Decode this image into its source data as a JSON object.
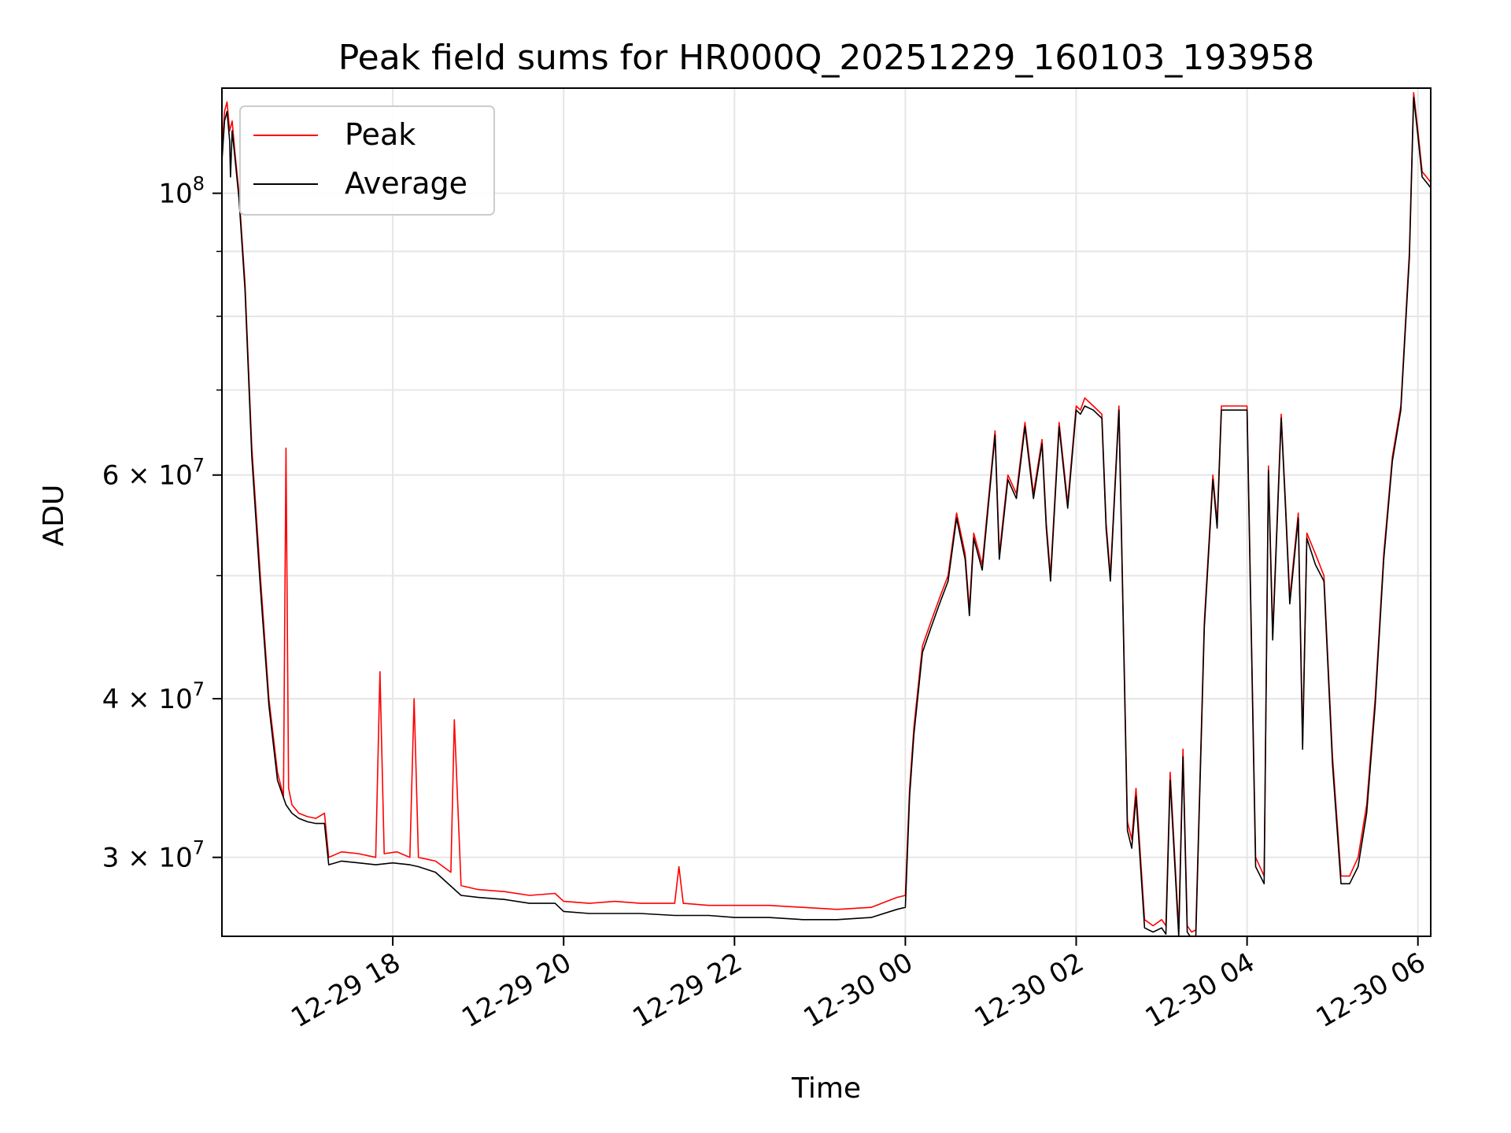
{
  "chart_data": {
    "type": "line",
    "title": "Peak field sums for HR000Q_20251229_160103_193958",
    "xlabel": "Time",
    "ylabel": "ADU",
    "yscale": "log",
    "xlim": [
      16.0,
      30.15
    ],
    "ylim": [
      26000000,
      121000000
    ],
    "grid": true,
    "legend_position": "upper-left",
    "x_ticks": [
      {
        "value": 18,
        "label": "12-29 18"
      },
      {
        "value": 20,
        "label": "12-29 20"
      },
      {
        "value": 22,
        "label": "12-29 22"
      },
      {
        "value": 24,
        "label": "12-30 00"
      },
      {
        "value": 26,
        "label": "12-30 02"
      },
      {
        "value": 28,
        "label": "12-30 04"
      },
      {
        "value": 30,
        "label": "12-30 06"
      }
    ],
    "y_ticks_major": [
      {
        "value": 100000000,
        "base": "10",
        "exp": "8",
        "mant": ""
      },
      {
        "value": 60000000,
        "base": "10",
        "exp": "7",
        "mant": "6 × "
      },
      {
        "value": 40000000,
        "base": "10",
        "exp": "7",
        "mant": "4 × "
      },
      {
        "value": 30000000,
        "base": "10",
        "exp": "7",
        "mant": "3 × "
      }
    ],
    "y_ticks_minor": [
      90000000,
      80000000,
      70000000,
      50000000
    ],
    "x_units": "hours since 2025-12-29 00:00",
    "series": [
      {
        "name": "Peak",
        "color": "#ff0000",
        "x": [
          16.0,
          16.03,
          16.06,
          16.09,
          16.12,
          16.15,
          16.2,
          16.27,
          16.35,
          16.45,
          16.55,
          16.65,
          16.72,
          16.75,
          16.78,
          16.82,
          16.9,
          17.0,
          17.1,
          17.2,
          17.25,
          17.4,
          17.6,
          17.8,
          17.85,
          17.9,
          18.05,
          18.2,
          18.25,
          18.3,
          18.5,
          18.68,
          18.72,
          18.8,
          19.0,
          19.3,
          19.6,
          19.9,
          20.0,
          20.3,
          20.6,
          20.9,
          21.3,
          21.35,
          21.4,
          21.7,
          22.0,
          22.4,
          22.8,
          23.2,
          23.6,
          23.9,
          24.0,
          24.05,
          24.1,
          24.2,
          24.3,
          24.4,
          24.5,
          24.6,
          24.7,
          24.75,
          24.8,
          24.9,
          25.0,
          25.05,
          25.1,
          25.2,
          25.3,
          25.4,
          25.5,
          25.6,
          25.65,
          25.7,
          25.8,
          25.9,
          26.0,
          26.05,
          26.1,
          26.2,
          26.3,
          26.35,
          26.4,
          26.5,
          26.6,
          26.65,
          26.7,
          26.8,
          26.9,
          27.0,
          27.05,
          27.1,
          27.2,
          27.25,
          27.3,
          27.35,
          27.4,
          27.5,
          27.6,
          27.65,
          27.7,
          27.8,
          28.0,
          28.1,
          28.2,
          28.25,
          28.3,
          28.4,
          28.45,
          28.5,
          28.6,
          28.65,
          28.7,
          28.8,
          28.9,
          29.0,
          29.1,
          29.2,
          29.3,
          29.4,
          29.5,
          29.6,
          29.7,
          29.8,
          29.9,
          29.95,
          30.0,
          30.05,
          30.1,
          30.15
        ],
        "y": [
          108000000,
          116000000,
          118000000,
          112000000,
          114000000,
          108000000,
          100000000,
          85000000,
          63000000,
          50000000,
          40000000,
          35000000,
          33500000,
          63000000,
          34000000,
          33000000,
          32500000,
          32300000,
          32200000,
          32500000,
          30000000,
          30300000,
          30200000,
          30000000,
          42000000,
          30200000,
          30300000,
          30000000,
          40000000,
          30000000,
          29800000,
          29200000,
          38500000,
          28500000,
          28300000,
          28200000,
          28000000,
          28100000,
          27700000,
          27600000,
          27700000,
          27600000,
          27600000,
          29500000,
          27600000,
          27500000,
          27500000,
          27500000,
          27400000,
          27300000,
          27400000,
          27900000,
          28000000,
          34000000,
          38000000,
          44000000,
          46000000,
          48000000,
          50000000,
          56000000,
          52000000,
          47000000,
          54000000,
          51000000,
          60000000,
          65000000,
          52000000,
          60000000,
          58000000,
          66000000,
          58000000,
          64000000,
          55000000,
          50000000,
          66000000,
          57000000,
          68000000,
          67500000,
          69000000,
          68000000,
          67000000,
          55000000,
          50000000,
          68000000,
          32000000,
          31000000,
          34000000,
          26800000,
          26500000,
          26800000,
          26500000,
          35000000,
          26300000,
          36500000,
          26500000,
          26200000,
          26300000,
          46000000,
          60000000,
          55000000,
          68000000,
          68000000,
          68000000,
          30000000,
          29000000,
          61000000,
          45000000,
          67000000,
          57000000,
          48000000,
          56000000,
          37000000,
          54000000,
          52000000,
          50000000,
          36000000,
          29000000,
          29000000,
          30000000,
          33000000,
          40000000,
          52000000,
          62000000,
          68000000,
          90000000,
          120000000,
          112000000,
          104000000,
          103000000,
          102000000
        ]
      },
      {
        "name": "Average",
        "color": "#000000",
        "x": [
          16.0,
          16.03,
          16.06,
          16.09,
          16.1,
          16.12,
          16.15,
          16.2,
          16.27,
          16.35,
          16.45,
          16.55,
          16.65,
          16.75,
          16.82,
          16.9,
          17.0,
          17.1,
          17.2,
          17.25,
          17.4,
          17.6,
          17.8,
          18.0,
          18.2,
          18.3,
          18.5,
          18.8,
          19.0,
          19.3,
          19.6,
          19.9,
          20.0,
          20.3,
          20.6,
          20.9,
          21.3,
          21.7,
          22.0,
          22.4,
          22.8,
          23.2,
          23.6,
          23.9,
          24.0,
          24.05,
          24.1,
          24.2,
          24.3,
          24.4,
          24.5,
          24.6,
          24.7,
          24.75,
          24.8,
          24.9,
          25.0,
          25.05,
          25.1,
          25.2,
          25.3,
          25.4,
          25.5,
          25.6,
          25.65,
          25.7,
          25.8,
          25.9,
          26.0,
          26.05,
          26.1,
          26.2,
          26.3,
          26.35,
          26.4,
          26.5,
          26.6,
          26.65,
          26.7,
          26.8,
          26.9,
          27.0,
          27.05,
          27.1,
          27.2,
          27.25,
          27.3,
          27.35,
          27.4,
          27.5,
          27.6,
          27.65,
          27.7,
          27.8,
          28.0,
          28.1,
          28.2,
          28.25,
          28.3,
          28.4,
          28.45,
          28.5,
          28.6,
          28.65,
          28.7,
          28.8,
          28.9,
          29.0,
          29.1,
          29.2,
          29.3,
          29.4,
          29.5,
          29.6,
          29.7,
          29.8,
          29.9,
          29.95,
          30.0,
          30.05,
          30.1,
          30.15
        ],
        "y": [
          106000000,
          114000000,
          116000000,
          110000000,
          103000000,
          112000000,
          107000000,
          99000000,
          84000000,
          62000000,
          49000000,
          39500000,
          34500000,
          33000000,
          32500000,
          32200000,
          32000000,
          31900000,
          31900000,
          29600000,
          29800000,
          29700000,
          29600000,
          29700000,
          29600000,
          29500000,
          29200000,
          28000000,
          27900000,
          27800000,
          27600000,
          27600000,
          27200000,
          27100000,
          27100000,
          27100000,
          27000000,
          27000000,
          26900000,
          26900000,
          26800000,
          26800000,
          26900000,
          27300000,
          27400000,
          33500000,
          37500000,
          43500000,
          45500000,
          47500000,
          49500000,
          55500000,
          51500000,
          46500000,
          53500000,
          50500000,
          59500000,
          64500000,
          51500000,
          59500000,
          57500000,
          65500000,
          57500000,
          63500000,
          54500000,
          49500000,
          65500000,
          56500000,
          67500000,
          67000000,
          68000000,
          67500000,
          66500000,
          54500000,
          49500000,
          67500000,
          31500000,
          30500000,
          33500000,
          26400000,
          26200000,
          26400000,
          26100000,
          34500000,
          26000000,
          36000000,
          26200000,
          25900000,
          26000000,
          45500000,
          59500000,
          54500000,
          67500000,
          67500000,
          67500000,
          29500000,
          28600000,
          60500000,
          44500000,
          66500000,
          56500000,
          47500000,
          55500000,
          36500000,
          53500000,
          51000000,
          49500000,
          35500000,
          28600000,
          28600000,
          29500000,
          32500000,
          39500000,
          51500000,
          61500000,
          67500000,
          89000000,
          119000000,
          111000000,
          103000000,
          102000000,
          101000000
        ]
      }
    ]
  }
}
